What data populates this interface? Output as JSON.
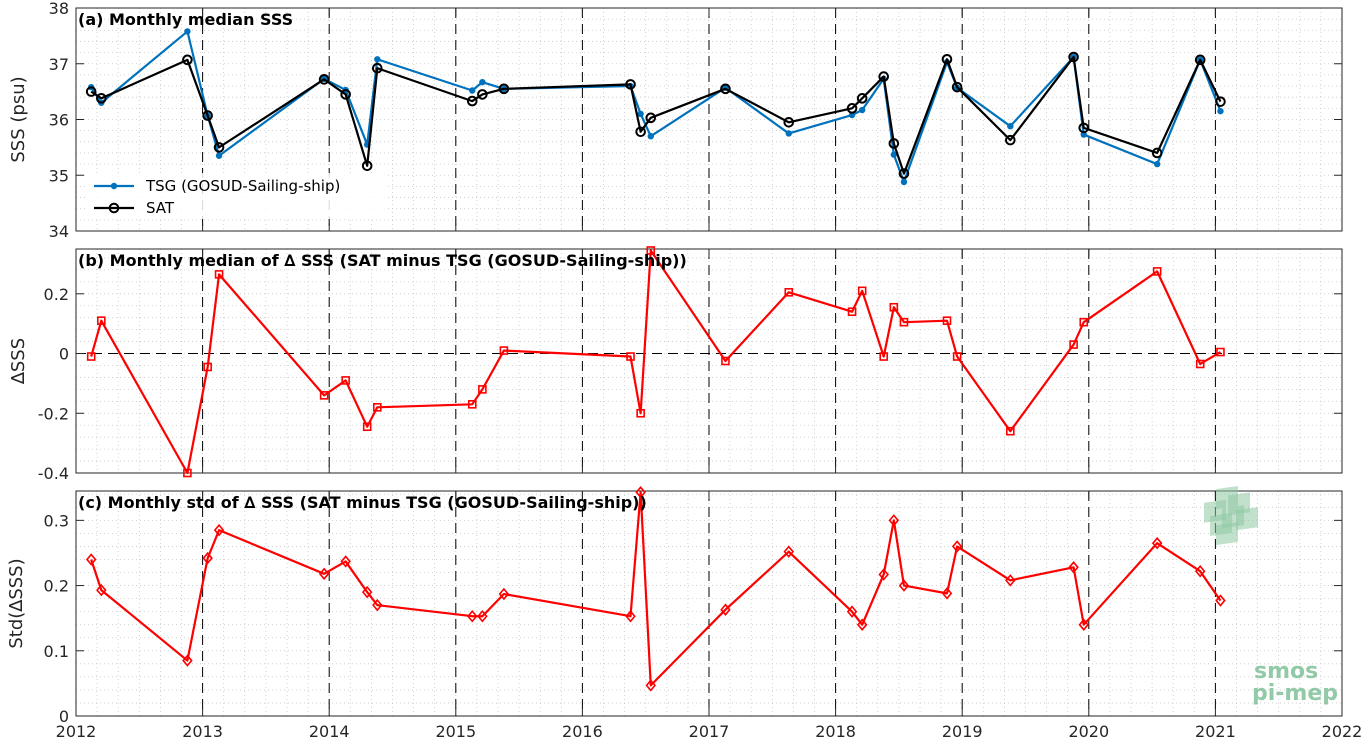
{
  "chart_data": [
    {
      "type": "line",
      "title": "(a) Monthly median SSS",
      "xlabel": "",
      "ylabel": "SSS (psu)",
      "xlim": [
        2012,
        2022
      ],
      "ylim": [
        34,
        38
      ],
      "xticks": [
        "2012",
        "2013",
        "2014",
        "2015",
        "2016",
        "2017",
        "2018",
        "2019",
        "2020",
        "2021",
        "2022"
      ],
      "yticks": [
        "34",
        "35",
        "36",
        "37",
        "38"
      ],
      "legend": "bottom-left",
      "series": [
        {
          "name": "TSG (GOSUD-Sailing-ship)",
          "color": "#0072BD",
          "marker": "dot",
          "x": [
            2012.12,
            2012.2,
            2012.88,
            2013.04,
            2013.13,
            2013.96,
            2014.13,
            2014.3,
            2014.38,
            2015.13,
            2015.21,
            2015.38,
            2016.38,
            2016.46,
            2016.54,
            2017.13,
            2017.63,
            2018.13,
            2018.21,
            2018.38,
            2018.46,
            2018.54,
            2018.88,
            2018.96,
            2019.38,
            2019.88,
            2019.96,
            2020.54,
            2020.88,
            2021.04
          ],
          "values": [
            36.58,
            36.3,
            37.58,
            36.07,
            35.35,
            36.73,
            36.53,
            35.55,
            37.08,
            36.52,
            36.67,
            36.55,
            36.6,
            36.1,
            35.7,
            36.57,
            35.75,
            36.08,
            36.17,
            36.73,
            35.37,
            34.88,
            37.03,
            36.57,
            35.88,
            37.12,
            35.73,
            35.2,
            37.07,
            36.15
          ]
        },
        {
          "name": "SAT",
          "color": "#000000",
          "marker": "circle",
          "x": [
            2012.12,
            2012.2,
            2012.88,
            2013.04,
            2013.13,
            2013.96,
            2014.13,
            2014.3,
            2014.38,
            2015.13,
            2015.21,
            2015.38,
            2016.38,
            2016.46,
            2016.54,
            2017.13,
            2017.63,
            2018.13,
            2018.21,
            2018.38,
            2018.46,
            2018.54,
            2018.88,
            2018.96,
            2019.38,
            2019.88,
            2019.96,
            2020.54,
            2020.88,
            2021.04
          ],
          "values": [
            36.5,
            36.38,
            37.07,
            36.07,
            35.5,
            36.72,
            36.45,
            35.17,
            36.92,
            36.33,
            36.45,
            36.55,
            36.63,
            35.78,
            36.03,
            36.55,
            35.95,
            36.2,
            36.38,
            36.77,
            35.57,
            35.03,
            37.08,
            36.58,
            35.63,
            37.12,
            35.85,
            35.4,
            37.07,
            36.32
          ]
        }
      ]
    },
    {
      "type": "line",
      "title": "(b) Monthly median of ∆ SSS (SAT minus TSG (GOSUD-Sailing-ship))",
      "xlabel": "",
      "ylabel": "∆SSS",
      "xlim": [
        2012,
        2022
      ],
      "ylim": [
        -0.4,
        0.35
      ],
      "xticks": [
        "2012",
        "2013",
        "2014",
        "2015",
        "2016",
        "2017",
        "2018",
        "2019",
        "2020",
        "2021",
        "2022"
      ],
      "yticks": [
        "-0.4",
        "-0.2",
        "0",
        "0.2"
      ],
      "series": [
        {
          "name": "",
          "color": "#FF0000",
          "marker": "square",
          "x": [
            2012.12,
            2012.2,
            2012.88,
            2013.04,
            2013.13,
            2013.96,
            2014.13,
            2014.3,
            2014.38,
            2015.13,
            2015.21,
            2015.38,
            2016.38,
            2016.46,
            2016.54,
            2017.13,
            2017.63,
            2018.13,
            2018.21,
            2018.38,
            2018.46,
            2018.54,
            2018.88,
            2018.96,
            2019.38,
            2019.88,
            2019.96,
            2020.54,
            2020.88,
            2021.04
          ],
          "values": [
            -0.01,
            0.11,
            -0.4,
            -0.045,
            0.265,
            -0.14,
            -0.09,
            -0.245,
            -0.18,
            -0.17,
            -0.12,
            0.01,
            -0.01,
            -0.2,
            0.345,
            -0.025,
            0.205,
            0.14,
            0.21,
            -0.01,
            0.155,
            0.105,
            0.11,
            -0.01,
            -0.26,
            0.03,
            0.105,
            0.275,
            -0.035,
            0.005
          ]
        }
      ]
    },
    {
      "type": "line",
      "title": "(c) Monthly std of ∆ SSS (SAT minus TSG (GOSUD-Sailing-ship))",
      "xlabel": "",
      "ylabel": "Std(∆SSS)",
      "xlim": [
        2012,
        2022
      ],
      "ylim": [
        0,
        0.345
      ],
      "xticks": [
        "2012",
        "2013",
        "2014",
        "2015",
        "2016",
        "2017",
        "2018",
        "2019",
        "2020",
        "2021",
        "2022"
      ],
      "yticks": [
        "0",
        "0.1",
        "0.2",
        "0.3"
      ],
      "series": [
        {
          "name": "",
          "color": "#FF0000",
          "marker": "diamond",
          "x": [
            2012.12,
            2012.2,
            2012.88,
            2013.04,
            2013.13,
            2013.96,
            2014.13,
            2014.3,
            2014.38,
            2015.13,
            2015.21,
            2015.38,
            2016.38,
            2016.46,
            2016.54,
            2017.13,
            2017.63,
            2018.13,
            2018.21,
            2018.38,
            2018.46,
            2018.54,
            2018.88,
            2018.96,
            2019.38,
            2019.88,
            2019.96,
            2020.54,
            2020.88,
            2021.04
          ],
          "values": [
            0.24,
            0.193,
            0.085,
            0.242,
            0.285,
            0.218,
            0.237,
            0.19,
            0.17,
            0.153,
            0.153,
            0.187,
            0.153,
            0.343,
            0.047,
            0.163,
            0.252,
            0.16,
            0.14,
            0.217,
            0.3,
            0.2,
            0.188,
            0.26,
            0.208,
            0.228,
            0.14,
            0.265,
            0.222,
            0.177
          ]
        }
      ]
    }
  ],
  "logo": {
    "line1": "smos",
    "line2": "pi-mep"
  }
}
